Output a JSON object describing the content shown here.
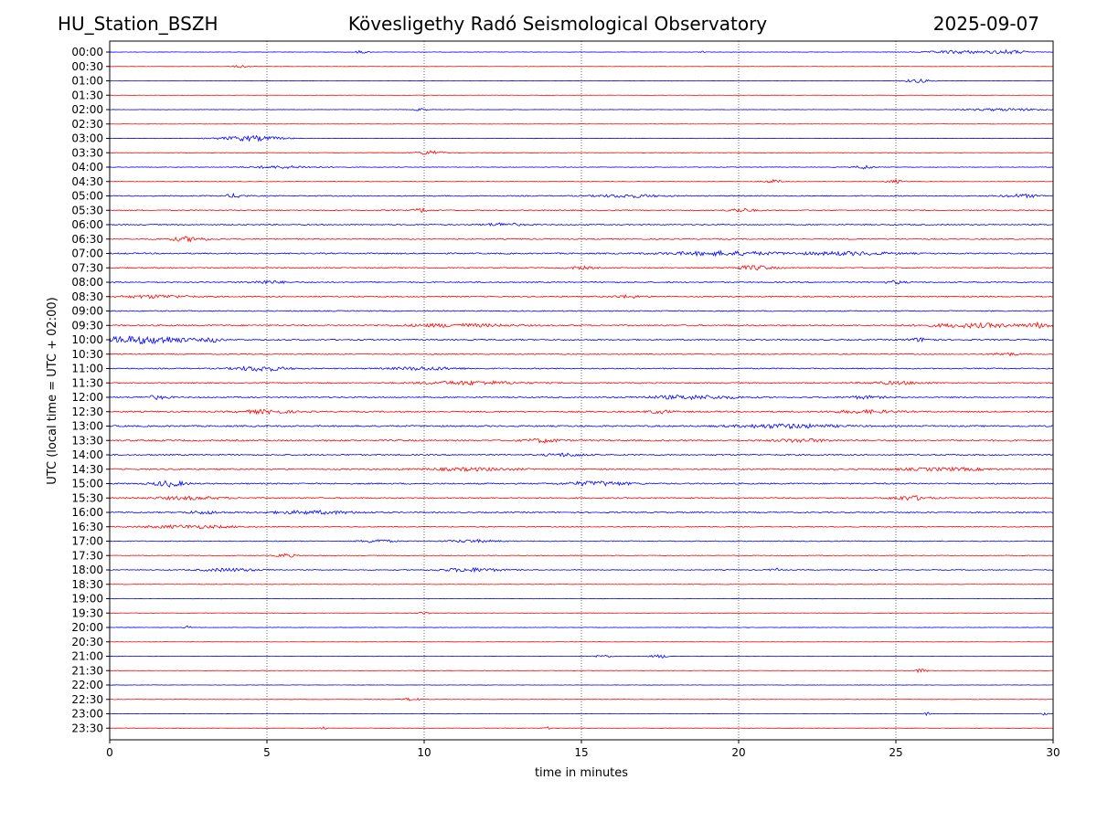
{
  "header": {
    "station": "HU_Station_BSZH",
    "observatory": "Kövesligethy Radó Seismological Observatory",
    "date": "2025-09-07"
  },
  "chart_data": {
    "type": "line",
    "title": "Kövesligethy Radó Seismological Observatory",
    "xlabel": "time in minutes",
    "ylabel": "UTC (local time = UTC + 02:00)",
    "xlim": [
      0,
      30
    ],
    "x_ticks": [
      "0",
      "5",
      "10",
      "15",
      "20",
      "25",
      "30"
    ],
    "vertical_gridlines_at": [
      5,
      10,
      15,
      20,
      25
    ],
    "grid": "dotted vertical lines",
    "line_colors": [
      "#0000ff",
      "#ff0000"
    ],
    "rows": [
      {
        "label": "00:00",
        "noise": 0.2,
        "bursts": [
          [
            8.0,
            0.2,
            1.6
          ],
          [
            18.9,
            0.1,
            2.2
          ],
          [
            27.0,
            1.0,
            1.8
          ],
          [
            28.6,
            0.6,
            2.0
          ]
        ]
      },
      {
        "label": "00:30",
        "noise": 0.15,
        "bursts": [
          [
            4.2,
            0.3,
            1.4
          ]
        ]
      },
      {
        "label": "01:00",
        "noise": 0.2,
        "bursts": [
          [
            25.7,
            0.4,
            2.0
          ]
        ]
      },
      {
        "label": "01:30",
        "noise": 0.15,
        "bursts": []
      },
      {
        "label": "02:00",
        "noise": 0.2,
        "bursts": [
          [
            9.9,
            0.2,
            1.5
          ],
          [
            28.5,
            1.5,
            1.3
          ]
        ]
      },
      {
        "label": "02:30",
        "noise": 0.18,
        "bursts": []
      },
      {
        "label": "03:00",
        "noise": 0.2,
        "bursts": [
          [
            4.5,
            1.0,
            2.8
          ]
        ]
      },
      {
        "label": "03:30",
        "noise": 0.25,
        "bursts": [
          [
            10.2,
            0.4,
            2.5
          ]
        ]
      },
      {
        "label": "04:00",
        "noise": 0.3,
        "bursts": [
          [
            5.5,
            1.2,
            1.4
          ],
          [
            24.0,
            0.3,
            2.0
          ]
        ]
      },
      {
        "label": "04:30",
        "noise": 0.25,
        "bursts": [
          [
            21.1,
            0.3,
            1.8
          ],
          [
            25.0,
            0.3,
            1.8
          ]
        ]
      },
      {
        "label": "05:00",
        "noise": 0.55,
        "bursts": [
          [
            4.0,
            0.3,
            2.0
          ],
          [
            16.5,
            1.0,
            1.6
          ],
          [
            29.0,
            0.6,
            1.6
          ]
        ]
      },
      {
        "label": "05:30",
        "noise": 0.55,
        "bursts": [
          [
            9.9,
            0.2,
            2.0
          ],
          [
            20.1,
            0.4,
            2.0
          ]
        ]
      },
      {
        "label": "06:00",
        "noise": 0.6,
        "bursts": [
          [
            12.5,
            0.6,
            1.6
          ]
        ]
      },
      {
        "label": "06:30",
        "noise": 0.6,
        "bursts": [
          [
            2.5,
            0.6,
            2.4
          ]
        ]
      },
      {
        "label": "07:00",
        "noise": 0.7,
        "bursts": [
          [
            19.5,
            1.8,
            2.0
          ],
          [
            23.5,
            1.4,
            1.7
          ]
        ]
      },
      {
        "label": "07:30",
        "noise": 0.6,
        "bursts": [
          [
            20.5,
            0.6,
            2.2
          ],
          [
            15.0,
            0.4,
            1.4
          ]
        ]
      },
      {
        "label": "08:00",
        "noise": 0.6,
        "bursts": [
          [
            5.0,
            0.6,
            1.6
          ],
          [
            25.0,
            0.3,
            1.6
          ]
        ]
      },
      {
        "label": "08:30",
        "noise": 0.65,
        "bursts": [
          [
            1.5,
            1.0,
            1.6
          ],
          [
            16.5,
            0.5,
            1.4
          ]
        ]
      },
      {
        "label": "09:00",
        "noise": 0.55,
        "bursts": []
      },
      {
        "label": "09:30",
        "noise": 0.75,
        "bursts": [
          [
            11.0,
            1.6,
            1.5
          ],
          [
            27.5,
            1.5,
            2.0
          ],
          [
            29.6,
            0.4,
            2.4
          ]
        ]
      },
      {
        "label": "10:00",
        "noise": 0.7,
        "bursts": [
          [
            0.5,
            0.8,
            3.0
          ],
          [
            1.7,
            0.9,
            3.2
          ],
          [
            3.3,
            0.3,
            2.2
          ],
          [
            25.8,
            0.4,
            1.8
          ]
        ]
      },
      {
        "label": "10:30",
        "noise": 0.55,
        "bursts": [
          [
            28.5,
            0.4,
            1.6
          ]
        ]
      },
      {
        "label": "11:00",
        "noise": 0.6,
        "bursts": [
          [
            4.8,
            0.8,
            2.6
          ],
          [
            10.0,
            1.0,
            1.7
          ]
        ]
      },
      {
        "label": "11:30",
        "noise": 0.6,
        "bursts": [
          [
            11.5,
            1.6,
            1.8
          ],
          [
            25.0,
            1.0,
            1.4
          ]
        ]
      },
      {
        "label": "12:00",
        "noise": 0.65,
        "bursts": [
          [
            1.5,
            0.4,
            1.8
          ],
          [
            18.5,
            1.5,
            1.9
          ],
          [
            24.0,
            0.6,
            1.4
          ]
        ]
      },
      {
        "label": "12:30",
        "noise": 0.75,
        "bursts": [
          [
            5.0,
            0.8,
            1.8
          ],
          [
            17.5,
            0.4,
            1.6
          ],
          [
            24.0,
            1.0,
            1.5
          ]
        ]
      },
      {
        "label": "13:00",
        "noise": 0.8,
        "bursts": [
          [
            21.5,
            1.6,
            2.0
          ]
        ]
      },
      {
        "label": "13:30",
        "noise": 0.8,
        "bursts": [
          [
            13.8,
            0.5,
            2.0
          ],
          [
            22.0,
            0.8,
            1.6
          ]
        ]
      },
      {
        "label": "14:00",
        "noise": 0.7,
        "bursts": [
          [
            14.5,
            0.6,
            1.6
          ]
        ]
      },
      {
        "label": "14:30",
        "noise": 0.7,
        "bursts": [
          [
            11.5,
            1.5,
            1.4
          ],
          [
            26.5,
            1.5,
            1.4
          ]
        ]
      },
      {
        "label": "15:00",
        "noise": 0.7,
        "bursts": [
          [
            1.9,
            0.5,
            3.0
          ],
          [
            15.5,
            1.0,
            2.2
          ]
        ]
      },
      {
        "label": "15:30",
        "noise": 0.65,
        "bursts": [
          [
            2.5,
            1.2,
            1.5
          ],
          [
            25.5,
            0.6,
            2.2
          ]
        ]
      },
      {
        "label": "16:00",
        "noise": 0.65,
        "bursts": [
          [
            6.5,
            1.5,
            1.6
          ],
          [
            3.0,
            0.6,
            1.4
          ]
        ]
      },
      {
        "label": "16:30",
        "noise": 0.5,
        "bursts": [
          [
            2.5,
            1.5,
            1.6
          ]
        ]
      },
      {
        "label": "17:00",
        "noise": 0.45,
        "bursts": [
          [
            8.5,
            0.5,
            1.8
          ],
          [
            11.5,
            0.8,
            1.4
          ]
        ]
      },
      {
        "label": "17:30",
        "noise": 0.35,
        "bursts": [
          [
            5.6,
            0.3,
            2.0
          ]
        ]
      },
      {
        "label": "18:00",
        "noise": 0.45,
        "bursts": [
          [
            3.8,
            1.0,
            1.6
          ],
          [
            11.5,
            1.0,
            2.0
          ],
          [
            21.2,
            0.2,
            1.6
          ]
        ]
      },
      {
        "label": "18:30",
        "noise": 0.25,
        "bursts": []
      },
      {
        "label": "19:00",
        "noise": 0.2,
        "bursts": []
      },
      {
        "label": "19:30",
        "noise": 0.22,
        "bursts": [
          [
            10.0,
            0.2,
            1.4
          ]
        ]
      },
      {
        "label": "20:00",
        "noise": 0.2,
        "bursts": [
          [
            2.5,
            0.1,
            2.0
          ]
        ]
      },
      {
        "label": "20:30",
        "noise": 0.18,
        "bursts": []
      },
      {
        "label": "21:00",
        "noise": 0.22,
        "bursts": [
          [
            15.7,
            0.3,
            1.5
          ],
          [
            17.5,
            0.3,
            1.7
          ]
        ]
      },
      {
        "label": "21:30",
        "noise": 0.2,
        "bursts": [
          [
            25.8,
            0.2,
            2.2
          ]
        ]
      },
      {
        "label": "22:00",
        "noise": 0.18,
        "bursts": []
      },
      {
        "label": "22:30",
        "noise": 0.22,
        "bursts": [
          [
            9.6,
            0.3,
            1.6
          ]
        ]
      },
      {
        "label": "23:00",
        "noise": 0.2,
        "bursts": [
          [
            26.0,
            0.1,
            1.6
          ],
          [
            29.7,
            0.1,
            1.6
          ]
        ]
      },
      {
        "label": "23:30",
        "noise": 0.2,
        "bursts": [
          [
            6.8,
            0.1,
            1.5
          ],
          [
            13.9,
            0.1,
            1.5
          ]
        ]
      }
    ]
  }
}
